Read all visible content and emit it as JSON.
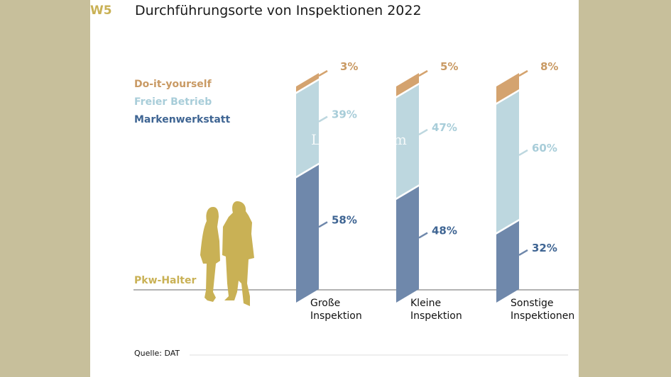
{
  "figure_id": "W5",
  "chart_data": {
    "type": "bar",
    "stacked": true,
    "title": "Durchführungsorte von Inspektionen 2022",
    "categories": [
      "Große Inspektion",
      "Kleine Inspektion",
      "Sonstige Inspektionen"
    ],
    "category_lines": [
      [
        "Große",
        "Inspektion"
      ],
      [
        "Kleine",
        "Inspektion"
      ],
      [
        "Sonstige",
        "Inspektionen"
      ]
    ],
    "series": [
      {
        "name": "Markenwerkstatt",
        "values": [
          58,
          48,
          32
        ],
        "labels": [
          "58%",
          "48%",
          "32%"
        ],
        "color": "#6f88ab",
        "text_color": "#3f6593"
      },
      {
        "name": "Freier Betrieb",
        "values": [
          39,
          47,
          60
        ],
        "labels": [
          "39%",
          "47%",
          "60%"
        ],
        "color": "#bdd7df",
        "text_color": "#a8cdd9"
      },
      {
        "name": "Do-it-yourself",
        "values": [
          3,
          5,
          8
        ],
        "labels": [
          "3%",
          "5%",
          "8%"
        ],
        "color": "#d4a36f",
        "text_color": "#c99a64"
      }
    ],
    "unit": "%",
    "ylim": [
      0,
      100
    ],
    "legend_position": "top-left",
    "grid": false
  },
  "baseline_label": "Pkw-Halter",
  "source": "Quelle: DAT",
  "watermark": "Lorem Ipsum",
  "colors": {
    "background": "#c7bf9b",
    "accent": "#c9b155",
    "baseline": "#9a9a9a"
  }
}
